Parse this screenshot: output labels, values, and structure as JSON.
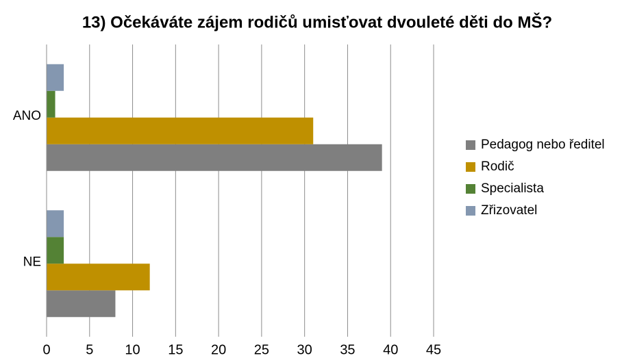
{
  "chart_data": {
    "type": "hbar",
    "title": "13) Očekáváte zájem rodičů umisťovat dvouleté děti do MŠ?",
    "categories": [
      "ANO",
      "NE"
    ],
    "series": [
      {
        "name": "Pedagog nebo ředitel",
        "color": "#7f7f7f",
        "values": [
          39,
          8
        ]
      },
      {
        "name": "Rodič",
        "color": "#bf9000",
        "values": [
          31,
          12
        ]
      },
      {
        "name": "Specialista",
        "color": "#548235",
        "values": [
          1,
          2
        ]
      },
      {
        "name": "Zřizovatel",
        "color": "#8497b0",
        "values": [
          2,
          2
        ]
      }
    ],
    "xlim": [
      0,
      45
    ],
    "xticks": [
      0,
      5,
      10,
      15,
      20,
      25,
      30,
      35,
      40,
      45
    ],
    "grid": true,
    "legend": "right"
  }
}
